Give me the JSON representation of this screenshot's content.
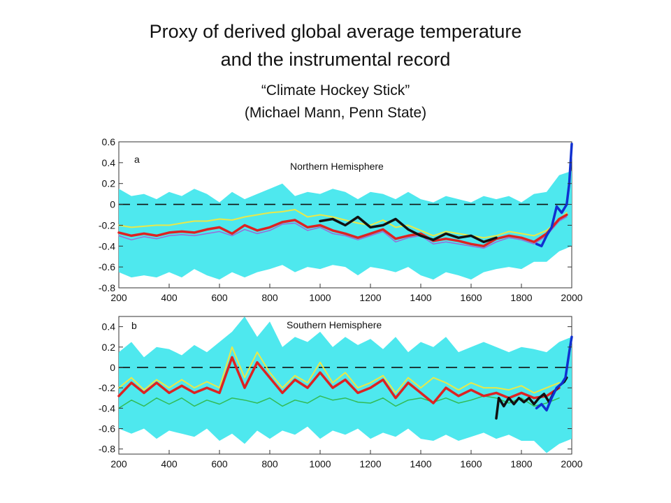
{
  "page": {
    "title_line1": "Proxy of derived global average temperature",
    "title_line2": "and the instrumental record",
    "subtitle_line1": "“Climate Hockey Stick”",
    "subtitle_line2": "(Michael Mann, Penn State)"
  },
  "colors": {
    "band": "#4ee8ee",
    "recon": "#dd2222",
    "yellow": "#e8e84a",
    "purple": "#9a6ad8",
    "green": "#33bb55",
    "black": "#111111",
    "instrumental": "#1030d0"
  },
  "chart_data": [
    {
      "type": "line",
      "panel_letter": "a",
      "panel_label": "Northern Hemisphere",
      "xlim": [
        200,
        2000
      ],
      "ylim": [
        -0.8,
        0.6
      ],
      "xticks": [
        200,
        400,
        600,
        800,
        1000,
        1200,
        1400,
        1600,
        1800,
        2000
      ],
      "yticks": [
        0.6,
        0.4,
        0.2,
        0,
        -0.2,
        -0.4,
        -0.6,
        -0.8
      ],
      "ytick_labels": [
        "0.6",
        "0.4",
        "0.2",
        "0",
        "-0.2",
        "-0.4",
        "-0.6",
        "-0.8"
      ],
      "zero_line": "dashed",
      "band": {
        "x": [
          200,
          250,
          300,
          350,
          400,
          450,
          500,
          550,
          600,
          650,
          700,
          750,
          800,
          850,
          900,
          950,
          1000,
          1050,
          1100,
          1150,
          1200,
          1250,
          1300,
          1350,
          1400,
          1450,
          1500,
          1550,
          1600,
          1650,
          1700,
          1750,
          1800,
          1850,
          1900,
          1950,
          2000
        ],
        "upper": [
          0.15,
          0.08,
          0.1,
          0.05,
          0.12,
          0.08,
          0.15,
          0.1,
          0.02,
          0.12,
          0.05,
          0.1,
          0.15,
          0.2,
          0.08,
          0.12,
          0.1,
          0.15,
          0.12,
          0.05,
          0.12,
          0.1,
          0.05,
          0.12,
          0.05,
          0.02,
          0.08,
          0.05,
          0.02,
          0.08,
          0.05,
          0.08,
          0.02,
          0.1,
          0.12,
          0.28,
          0.32
        ],
        "lower": [
          -0.65,
          -0.7,
          -0.68,
          -0.7,
          -0.65,
          -0.7,
          -0.62,
          -0.68,
          -0.72,
          -0.65,
          -0.7,
          -0.65,
          -0.62,
          -0.58,
          -0.65,
          -0.6,
          -0.62,
          -0.58,
          -0.6,
          -0.68,
          -0.6,
          -0.62,
          -0.65,
          -0.6,
          -0.68,
          -0.72,
          -0.65,
          -0.68,
          -0.72,
          -0.65,
          -0.62,
          -0.6,
          -0.62,
          -0.55,
          -0.55,
          -0.45,
          -0.4
        ]
      },
      "series": [
        {
          "x": [
            200,
            250,
            300,
            350,
            400,
            450,
            500,
            550,
            600,
            650,
            700,
            750,
            800,
            850,
            900,
            950,
            1000,
            1050,
            1100,
            1150,
            1200,
            1250,
            1300,
            1350,
            1400,
            1450,
            1500,
            1550,
            1600,
            1650,
            1700,
            1750,
            1800,
            1850,
            1900,
            1950,
            1980
          ],
          "values": [
            -0.2,
            -0.22,
            -0.21,
            -0.2,
            -0.2,
            -0.18,
            -0.16,
            -0.16,
            -0.14,
            -0.15,
            -0.12,
            -0.1,
            -0.08,
            -0.07,
            -0.05,
            -0.12,
            -0.1,
            -0.12,
            -0.15,
            -0.18,
            -0.2,
            -0.15,
            -0.22,
            -0.2,
            -0.25,
            -0.3,
            -0.26,
            -0.28,
            -0.3,
            -0.32,
            -0.3,
            -0.26,
            -0.28,
            -0.3,
            -0.25,
            -0.15,
            -0.08
          ],
          "role": "yellow"
        },
        {
          "x": [
            200,
            250,
            300,
            350,
            400,
            450,
            500,
            550,
            600,
            650,
            700,
            750,
            800,
            850,
            900,
            950,
            1000,
            1050,
            1100,
            1150,
            1200,
            1250,
            1300,
            1350,
            1400,
            1450,
            1500,
            1550,
            1600,
            1650,
            1700,
            1750,
            1800,
            1850,
            1900,
            1950,
            1980
          ],
          "values": [
            -0.3,
            -0.34,
            -0.31,
            -0.33,
            -0.3,
            -0.29,
            -0.3,
            -0.28,
            -0.26,
            -0.3,
            -0.24,
            -0.28,
            -0.25,
            -0.19,
            -0.18,
            -0.25,
            -0.22,
            -0.28,
            -0.3,
            -0.34,
            -0.3,
            -0.26,
            -0.36,
            -0.32,
            -0.3,
            -0.38,
            -0.36,
            -0.38,
            -0.4,
            -0.42,
            -0.36,
            -0.32,
            -0.34,
            -0.38,
            -0.3,
            -0.16,
            -0.12
          ],
          "role": "purple"
        },
        {
          "x": [
            200,
            250,
            300,
            350,
            400,
            450,
            500,
            550,
            600,
            650,
            700,
            750,
            800,
            850,
            900,
            950,
            1000,
            1050,
            1100,
            1150,
            1200,
            1250,
            1300,
            1350,
            1400,
            1450,
            1500,
            1550,
            1600,
            1650,
            1700,
            1750,
            1800,
            1850,
            1900,
            1950,
            1980
          ],
          "values": [
            -0.27,
            -0.3,
            -0.28,
            -0.3,
            -0.27,
            -0.26,
            -0.27,
            -0.24,
            -0.22,
            -0.28,
            -0.2,
            -0.25,
            -0.22,
            -0.17,
            -0.15,
            -0.22,
            -0.2,
            -0.25,
            -0.28,
            -0.32,
            -0.28,
            -0.24,
            -0.33,
            -0.3,
            -0.28,
            -0.35,
            -0.33,
            -0.35,
            -0.38,
            -0.4,
            -0.33,
            -0.3,
            -0.32,
            -0.36,
            -0.28,
            -0.14,
            -0.1
          ],
          "role": "recon"
        },
        {
          "x": [
            1000,
            1050,
            1100,
            1150,
            1200,
            1250,
            1300,
            1350,
            1400,
            1450,
            1500,
            1550,
            1600,
            1650,
            1700
          ],
          "values": [
            -0.16,
            -0.14,
            -0.2,
            -0.12,
            -0.22,
            -0.2,
            -0.14,
            -0.24,
            -0.3,
            -0.34,
            -0.28,
            -0.32,
            -0.3,
            -0.36,
            -0.32
          ],
          "role": "black"
        },
        {
          "x": [
            1860,
            1880,
            1900,
            1920,
            1940,
            1960,
            1980,
            1990,
            2000
          ],
          "values": [
            -0.38,
            -0.4,
            -0.3,
            -0.22,
            -0.02,
            -0.08,
            0.0,
            0.2,
            0.58
          ],
          "role": "instrumental"
        }
      ]
    },
    {
      "type": "line",
      "panel_letter": "b",
      "panel_label": "Southern Hemisphere",
      "xlim": [
        200,
        2000
      ],
      "ylim": [
        -0.85,
        0.5
      ],
      "xticks": [
        200,
        400,
        600,
        800,
        1000,
        1200,
        1400,
        1600,
        1800,
        2000
      ],
      "yticks": [
        0.4,
        0.2,
        0,
        -0.2,
        -0.4,
        -0.6,
        -0.8
      ],
      "ytick_labels": [
        "0.4",
        "0.2",
        "0",
        "-0.2",
        "-0.4",
        "-0.6",
        "-0.8"
      ],
      "zero_line": "dashed",
      "band": {
        "x": [
          200,
          250,
          300,
          350,
          400,
          450,
          500,
          550,
          600,
          650,
          700,
          750,
          800,
          850,
          900,
          950,
          1000,
          1050,
          1100,
          1150,
          1200,
          1250,
          1300,
          1350,
          1400,
          1450,
          1500,
          1550,
          1600,
          1650,
          1700,
          1750,
          1800,
          1850,
          1900,
          1950,
          2000
        ],
        "upper": [
          0.15,
          0.25,
          0.1,
          0.2,
          0.18,
          0.12,
          0.22,
          0.15,
          0.25,
          0.35,
          0.5,
          0.3,
          0.45,
          0.2,
          0.3,
          0.25,
          0.35,
          0.2,
          0.3,
          0.22,
          0.28,
          0.18,
          0.3,
          0.15,
          0.25,
          0.2,
          0.3,
          0.15,
          0.2,
          0.25,
          0.2,
          0.15,
          0.2,
          0.18,
          0.15,
          0.25,
          0.3
        ],
        "lower": [
          -0.6,
          -0.65,
          -0.6,
          -0.7,
          -0.62,
          -0.65,
          -0.68,
          -0.6,
          -0.72,
          -0.65,
          -0.75,
          -0.62,
          -0.7,
          -0.62,
          -0.66,
          -0.58,
          -0.7,
          -0.62,
          -0.66,
          -0.6,
          -0.7,
          -0.64,
          -0.68,
          -0.6,
          -0.7,
          -0.72,
          -0.66,
          -0.72,
          -0.68,
          -0.64,
          -0.7,
          -0.66,
          -0.72,
          -0.72,
          -0.84,
          -0.75,
          -0.7
        ]
      },
      "series": [
        {
          "x": [
            200,
            250,
            300,
            350,
            400,
            450,
            500,
            550,
            600,
            650,
            700,
            750,
            800,
            850,
            900,
            950,
            1000,
            1050,
            1100,
            1150,
            1200,
            1250,
            1300,
            1350,
            1400,
            1450,
            1500,
            1550,
            1600,
            1650,
            1700,
            1750,
            1800,
            1850,
            1900,
            1950
          ],
          "values": [
            -0.2,
            -0.1,
            -0.22,
            -0.12,
            -0.2,
            -0.12,
            -0.2,
            -0.14,
            -0.2,
            0.2,
            -0.1,
            0.15,
            -0.05,
            -0.2,
            -0.08,
            -0.15,
            0.05,
            -0.15,
            -0.05,
            -0.2,
            -0.15,
            -0.08,
            -0.25,
            -0.1,
            -0.2,
            -0.1,
            -0.15,
            -0.22,
            -0.15,
            -0.2,
            -0.2,
            -0.22,
            -0.18,
            -0.25,
            -0.2,
            -0.15
          ],
          "role": "yellow"
        },
        {
          "x": [
            200,
            250,
            300,
            350,
            400,
            450,
            500,
            550,
            600,
            650,
            700,
            750,
            800,
            850,
            900,
            950,
            1000,
            1050,
            1100,
            1150,
            1200,
            1250,
            1300,
            1350,
            1400,
            1450,
            1500,
            1550,
            1600,
            1650,
            1700,
            1750,
            1800,
            1850,
            1900,
            1950
          ],
          "values": [
            -0.4,
            -0.32,
            -0.38,
            -0.3,
            -0.36,
            -0.3,
            -0.38,
            -0.32,
            -0.36,
            -0.3,
            -0.32,
            -0.35,
            -0.3,
            -0.38,
            -0.32,
            -0.35,
            -0.28,
            -0.32,
            -0.3,
            -0.34,
            -0.35,
            -0.3,
            -0.38,
            -0.32,
            -0.3,
            -0.34,
            -0.3,
            -0.35,
            -0.32,
            -0.28,
            -0.3,
            -0.35,
            -0.3,
            -0.38,
            -0.35,
            -0.3
          ],
          "role": "green"
        },
        {
          "x": [
            200,
            250,
            300,
            350,
            400,
            450,
            500,
            550,
            600,
            650,
            700,
            750,
            800,
            850,
            900,
            950,
            1000,
            1050,
            1100,
            1150,
            1200,
            1250,
            1300,
            1350,
            1400,
            1450,
            1500,
            1550,
            1600,
            1650,
            1700,
            1750,
            1800,
            1850,
            1900,
            1950
          ],
          "values": [
            -0.28,
            -0.15,
            -0.25,
            -0.15,
            -0.25,
            -0.18,
            -0.25,
            -0.2,
            -0.25,
            0.1,
            -0.2,
            0.05,
            -0.1,
            -0.25,
            -0.12,
            -0.2,
            -0.05,
            -0.2,
            -0.12,
            -0.25,
            -0.2,
            -0.12,
            -0.3,
            -0.15,
            -0.25,
            -0.35,
            -0.2,
            -0.28,
            -0.22,
            -0.28,
            -0.25,
            -0.3,
            -0.25,
            -0.3,
            -0.28,
            -0.2
          ],
          "role": "recon"
        },
        {
          "x": [
            1700,
            1710,
            1730,
            1750,
            1770,
            1790,
            1810,
            1830,
            1850,
            1870,
            1890,
            1910,
            1930,
            1950,
            1970,
            1980
          ],
          "values": [
            -0.5,
            -0.3,
            -0.38,
            -0.3,
            -0.36,
            -0.3,
            -0.34,
            -0.3,
            -0.36,
            -0.3,
            -0.26,
            -0.34,
            -0.24,
            -0.18,
            -0.14,
            -0.1
          ],
          "role": "black"
        },
        {
          "x": [
            1860,
            1880,
            1900,
            1920,
            1940,
            1960,
            1975,
            1990,
            2000
          ],
          "values": [
            -0.4,
            -0.36,
            -0.42,
            -0.3,
            -0.2,
            -0.16,
            -0.1,
            0.15,
            0.3
          ],
          "role": "instrumental"
        }
      ]
    }
  ]
}
